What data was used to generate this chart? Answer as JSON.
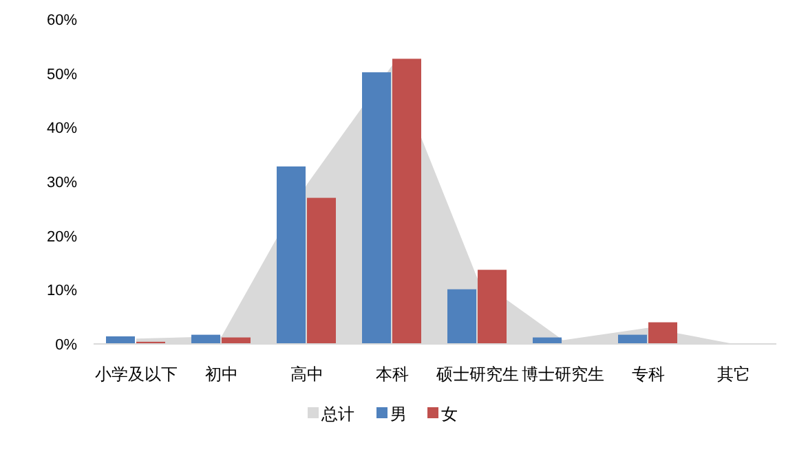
{
  "chart_data": {
    "type": "bar",
    "categories": [
      "小学及以下",
      "初中",
      "高中",
      "本科",
      "硕士研究生",
      "博士研究生",
      "专科",
      "其它"
    ],
    "series": [
      {
        "name": "总计",
        "type": "area",
        "color": "#d9d9d9",
        "values": [
          1.0,
          1.4,
          29.5,
          51.5,
          12.0,
          0.7,
          3.0,
          0
        ]
      },
      {
        "name": "男",
        "color": "#4f81bd",
        "values": [
          1.4,
          1.7,
          32.8,
          50.2,
          10.1,
          1.2,
          1.7,
          0
        ]
      },
      {
        "name": "女",
        "color": "#c0504d",
        "values": [
          0.4,
          1.2,
          27.0,
          52.7,
          13.7,
          0,
          4.0,
          0
        ]
      }
    ],
    "ylim": [
      0,
      60
    ],
    "yticks": [
      {
        "value": 0,
        "label": "0%"
      },
      {
        "value": 10,
        "label": "10%"
      },
      {
        "value": 20,
        "label": "20%"
      },
      {
        "value": 30,
        "label": "30%"
      },
      {
        "value": 40,
        "label": "40%"
      },
      {
        "value": 50,
        "label": "50%"
      },
      {
        "value": 60,
        "label": "60%"
      }
    ],
    "grid": false,
    "legend": "bottom"
  }
}
